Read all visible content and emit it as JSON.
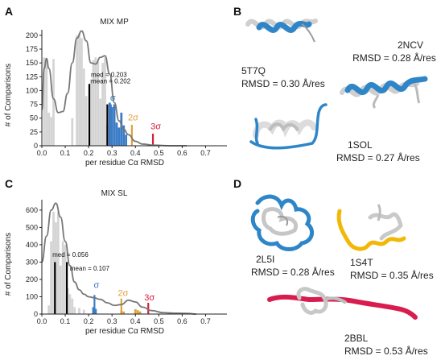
{
  "panels": {
    "A": {
      "letter": "A",
      "chart_data": {
        "type": "bar",
        "title": "MIX MP",
        "xlabel": "per residue Cα RMSD",
        "ylabel": "# of Comparisons",
        "xlim": [
          0.0,
          0.75
        ],
        "ylim": [
          0,
          210
        ],
        "xticks": [
          "0.0",
          "0.1",
          "0.2",
          "0.3",
          "0.4",
          "0.5",
          "0.6",
          "0.7"
        ],
        "yticks": [
          "0",
          "25",
          "50",
          "75",
          "100",
          "125",
          "150",
          "175",
          "200"
        ],
        "bins": [
          {
            "x": 0.01,
            "v": 160,
            "color": "#d4d4d4"
          },
          {
            "x": 0.02,
            "v": 158,
            "color": "#d4d4d4"
          },
          {
            "x": 0.03,
            "v": 60,
            "color": "#d4d4d4"
          },
          {
            "x": 0.04,
            "v": 52,
            "color": "#d4d4d4"
          },
          {
            "x": 0.05,
            "v": 157,
            "color": "#d4d4d4"
          },
          {
            "x": 0.13,
            "v": 50,
            "color": "#d4d4d4"
          },
          {
            "x": 0.15,
            "v": 200,
            "color": "#d4d4d4"
          },
          {
            "x": 0.16,
            "v": 203,
            "color": "#d4d4d4"
          },
          {
            "x": 0.17,
            "v": 195,
            "color": "#d4d4d4"
          },
          {
            "x": 0.18,
            "v": 140,
            "color": "#d4d4d4"
          },
          {
            "x": 0.19,
            "v": 90,
            "color": "#d4d4d4"
          },
          {
            "x": 0.21,
            "v": 120,
            "color": "#d4d4d4"
          },
          {
            "x": 0.22,
            "v": 155,
            "color": "#d4d4d4"
          },
          {
            "x": 0.23,
            "v": 160,
            "color": "#d4d4d4"
          },
          {
            "x": 0.24,
            "v": 152,
            "color": "#d4d4d4"
          },
          {
            "x": 0.25,
            "v": 85,
            "color": "#d4d4d4"
          },
          {
            "x": 0.26,
            "v": 150,
            "color": "#d4d4d4"
          },
          {
            "x": 0.27,
            "v": 160,
            "color": "#d4d4d4"
          },
          {
            "x": 0.28,
            "v": 38,
            "color": "#d4d4d4"
          },
          {
            "x": 0.29,
            "v": 78,
            "color": "#3b7cc6"
          },
          {
            "x": 0.3,
            "v": 70,
            "color": "#3b7cc6"
          },
          {
            "x": 0.31,
            "v": 75,
            "color": "#3b7cc6"
          },
          {
            "x": 0.32,
            "v": 42,
            "color": "#3b7cc6"
          },
          {
            "x": 0.33,
            "v": 33,
            "color": "#3b7cc6"
          },
          {
            "x": 0.34,
            "v": 60,
            "color": "#3b7cc6"
          },
          {
            "x": 0.35,
            "v": 37,
            "color": "#3b7cc6"
          },
          {
            "x": 0.36,
            "v": 20,
            "color": "#3b7cc6"
          }
        ],
        "curve": [
          [
            0.0,
            65
          ],
          [
            0.01,
            140
          ],
          [
            0.02,
            158
          ],
          [
            0.03,
            140
          ],
          [
            0.05,
            85
          ],
          [
            0.07,
            60
          ],
          [
            0.09,
            62
          ],
          [
            0.11,
            95
          ],
          [
            0.13,
            150
          ],
          [
            0.15,
            195
          ],
          [
            0.17,
            208
          ],
          [
            0.19,
            190
          ],
          [
            0.21,
            150
          ],
          [
            0.23,
            148
          ],
          [
            0.25,
            160
          ],
          [
            0.27,
            163
          ],
          [
            0.29,
            130
          ],
          [
            0.31,
            78
          ],
          [
            0.33,
            45
          ],
          [
            0.35,
            30
          ],
          [
            0.37,
            20
          ],
          [
            0.4,
            8
          ],
          [
            0.43,
            3
          ],
          [
            0.48,
            1
          ],
          [
            0.55,
            0
          ],
          [
            0.62,
            0
          ]
        ],
        "lines": [
          {
            "x": 0.203,
            "v": 112,
            "color": "#000000"
          },
          {
            "x": 0.28,
            "v": 75,
            "color": "#000000"
          },
          {
            "x": 0.295,
            "v": 75,
            "color": "#3b7cc6"
          },
          {
            "x": 0.385,
            "v": 38,
            "color": "#e0a13a"
          },
          {
            "x": 0.475,
            "v": 22,
            "color": "#d8203c"
          }
        ],
        "annotations": [
          {
            "text": "med = 0.203",
            "x": 0.21,
            "v": 125
          },
          {
            "text": "mean = 0.202",
            "x": 0.21,
            "v": 113
          }
        ],
        "sigma_labels": [
          {
            "text": "σ",
            "x": 0.292,
            "v": 82,
            "color": "#3b7cc6"
          },
          {
            "text": "2σ",
            "x": 0.368,
            "v": 46,
            "color": "#e0a13a"
          },
          {
            "text": "3σ",
            "x": 0.465,
            "v": 30,
            "color": "#d8203c"
          }
        ]
      }
    },
    "B": {
      "letter": "B",
      "labels": [
        {
          "name": "5T7Q",
          "rmsd": "RMSD = 0.30 Å/res"
        },
        {
          "name": "2NCV",
          "rmsd": "RMSD = 0.28 Å/res"
        },
        {
          "name": "1SOL",
          "rmsd": "RMSD = 0.27 Å/res"
        }
      ]
    },
    "C": {
      "letter": "C",
      "chart_data": {
        "type": "bar",
        "title": "MIX SL",
        "xlabel": "per residue Cα RMSD",
        "ylabel": "# of Comparisons",
        "xlim": [
          0.0,
          0.75
        ],
        "ylim": [
          0,
          660
        ],
        "xticks": [
          "0.0",
          "0.1",
          "0.2",
          "0.3",
          "0.4",
          "0.5",
          "0.6",
          "0.7"
        ],
        "yticks": [
          "0",
          "100",
          "200",
          "300",
          "400",
          "500",
          "600"
        ],
        "bins": [
          {
            "x": 0.03,
            "v": 50,
            "color": "#d4d4d4"
          },
          {
            "x": 0.04,
            "v": 420,
            "color": "#d4d4d4"
          },
          {
            "x": 0.05,
            "v": 590,
            "color": "#d4d4d4"
          },
          {
            "x": 0.06,
            "v": 530,
            "color": "#d4d4d4"
          },
          {
            "x": 0.07,
            "v": 590,
            "color": "#d4d4d4"
          },
          {
            "x": 0.08,
            "v": 280,
            "color": "#d4d4d4"
          },
          {
            "x": 0.09,
            "v": 420,
            "color": "#d4d4d4"
          },
          {
            "x": 0.1,
            "v": 400,
            "color": "#d4d4d4"
          },
          {
            "x": 0.11,
            "v": 150,
            "color": "#d4d4d4"
          },
          {
            "x": 0.12,
            "v": 115,
            "color": "#d4d4d4"
          },
          {
            "x": 0.13,
            "v": 90,
            "color": "#d4d4d4"
          },
          {
            "x": 0.14,
            "v": 40,
            "color": "#d4d4d4"
          },
          {
            "x": 0.16,
            "v": 35,
            "color": "#d4d4d4"
          },
          {
            "x": 0.18,
            "v": 25,
            "color": "#d4d4d4"
          },
          {
            "x": 0.22,
            "v": 40,
            "color": "#3b7cc6"
          },
          {
            "x": 0.23,
            "v": 30,
            "color": "#3b7cc6"
          },
          {
            "x": 0.34,
            "v": 20,
            "color": "#e0a13a"
          },
          {
            "x": 0.35,
            "v": 15,
            "color": "#e0a13a"
          },
          {
            "x": 0.4,
            "v": 28,
            "color": "#e0a13a"
          },
          {
            "x": 0.41,
            "v": 22,
            "color": "#e0a13a"
          },
          {
            "x": 0.42,
            "v": 15,
            "color": "#e0a13a"
          },
          {
            "x": 0.55,
            "v": 10,
            "color": "#d8203c"
          },
          {
            "x": 0.58,
            "v": 8,
            "color": "#d8203c"
          }
        ],
        "curve": [
          [
            0.0,
            300
          ],
          [
            0.02,
            450
          ],
          [
            0.04,
            600
          ],
          [
            0.06,
            640
          ],
          [
            0.08,
            560
          ],
          [
            0.1,
            420
          ],
          [
            0.12,
            280
          ],
          [
            0.14,
            185
          ],
          [
            0.16,
            140
          ],
          [
            0.18,
            115
          ],
          [
            0.2,
            100
          ],
          [
            0.22,
            95
          ],
          [
            0.25,
            85
          ],
          [
            0.28,
            65
          ],
          [
            0.31,
            50
          ],
          [
            0.34,
            55
          ],
          [
            0.37,
            80
          ],
          [
            0.4,
            70
          ],
          [
            0.43,
            40
          ],
          [
            0.47,
            20
          ],
          [
            0.52,
            8
          ],
          [
            0.57,
            5
          ],
          [
            0.62,
            4
          ],
          [
            0.66,
            0
          ]
        ],
        "lines": [
          {
            "x": 0.056,
            "v": 300,
            "color": "#000000"
          },
          {
            "x": 0.107,
            "v": 300,
            "color": "#000000"
          },
          {
            "x": 0.225,
            "v": 110,
            "color": "#3b7cc6"
          },
          {
            "x": 0.34,
            "v": 90,
            "color": "#e0a13a"
          },
          {
            "x": 0.455,
            "v": 65,
            "color": "#d8203c"
          }
        ],
        "annotations": [
          {
            "text": "med = 0.056",
            "x": 0.045,
            "v": 330
          },
          {
            "text": "mean = 0.107",
            "x": 0.12,
            "v": 250
          }
        ],
        "sigma_labels": [
          {
            "text": "σ",
            "x": 0.222,
            "v": 150,
            "color": "#3b7cc6"
          },
          {
            "text": "2σ",
            "x": 0.325,
            "v": 105,
            "color": "#e0a13a"
          },
          {
            "text": "3σ",
            "x": 0.438,
            "v": 80,
            "color": "#d8203c"
          }
        ]
      }
    },
    "D": {
      "letter": "D",
      "labels": [
        {
          "name": "2L5I",
          "rmsd": "RMSD = 0.28 Å/res"
        },
        {
          "name": "1S4T",
          "rmsd": "RMSD = 0.35 Å/res"
        },
        {
          "name": "2BBL",
          "rmsd": "RMSD = 0.53 Å/res"
        }
      ]
    }
  }
}
